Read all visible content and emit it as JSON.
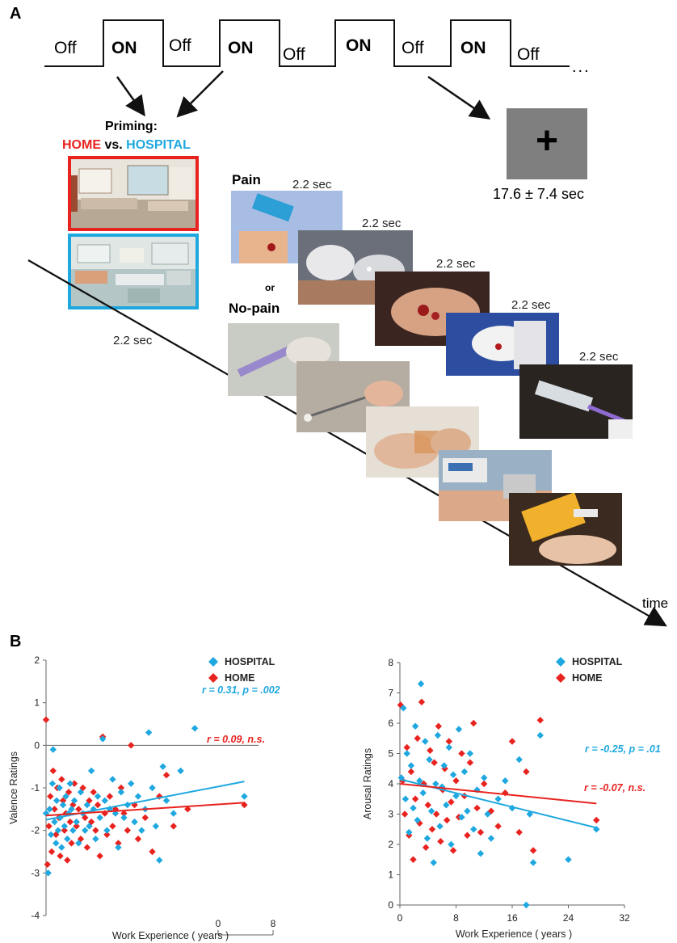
{
  "panel_a": {
    "letter": "A",
    "block_labels": [
      "Off",
      "ON",
      "Off",
      "ON",
      "Off",
      "ON",
      "Off",
      "ON",
      "Off"
    ],
    "ellipsis": "...",
    "priming_title": "Priming:",
    "home_label": "HOME",
    "vs_label": "vs.",
    "hospital_label": "HOSPITAL",
    "fixation_symbol": "+",
    "fixation_duration": "17.6 ± 7.4 sec",
    "pain_label": "Pain",
    "or_label": "or",
    "nopain_label": "No-pain",
    "stim_duration": "2.2 sec",
    "time_label": "time",
    "colors": {
      "home": "#e8231f",
      "hospital": "#1fa8e0",
      "fixation_bg": "#7f7f7f"
    },
    "photo_icons": [
      "living-room-photo",
      "hospital-ward-photo",
      "pain-photo",
      "no-pain-photo"
    ]
  },
  "panel_b": {
    "letter": "B",
    "legend_hospital": "HOSPITAL",
    "legend_home": "HOME",
    "xaxis_title": "Work Experience ( years )"
  },
  "chart_data": [
    {
      "type": "scatter",
      "ylabel": "Valence Ratings",
      "xlabel": "Work Experience ( years )",
      "ylim": [
        -4,
        2
      ],
      "y_ticks": [
        "2",
        "1",
        "0",
        "-1",
        "-2",
        "-3",
        "-4"
      ],
      "x_ticks": [
        "0",
        "8"
      ],
      "grid": false,
      "legend": "top-right",
      "series": [
        {
          "name": "HOSPITAL",
          "color": "#1fa8e0",
          "points": [
            [
              0,
              -1.6
            ],
            [
              0.3,
              -3.0
            ],
            [
              0.5,
              -1.5
            ],
            [
              0.7,
              -2.1
            ],
            [
              0.9,
              -0.9
            ],
            [
              1.0,
              -0.1
            ],
            [
              1.2,
              -1.8
            ],
            [
              1.4,
              -2.3
            ],
            [
              1.5,
              -1.3
            ],
            [
              1.7,
              -2.0
            ],
            [
              1.9,
              -1.0
            ],
            [
              2.0,
              -1.7
            ],
            [
              2.2,
              -2.4
            ],
            [
              2.4,
              -1.4
            ],
            [
              2.6,
              -1.9
            ],
            [
              2.8,
              -1.2
            ],
            [
              3.0,
              -2.2
            ],
            [
              3.2,
              -1.6
            ],
            [
              3.4,
              -0.9
            ],
            [
              3.6,
              -1.5
            ],
            [
              3.8,
              -2.0
            ],
            [
              4.0,
              -1.3
            ],
            [
              4.3,
              -1.8
            ],
            [
              4.6,
              -2.3
            ],
            [
              4.9,
              -1.1
            ],
            [
              5.2,
              -1.6
            ],
            [
              5.5,
              -2.0
            ],
            [
              5.8,
              -1.4
            ],
            [
              6.1,
              -1.9
            ],
            [
              6.4,
              -0.6
            ],
            [
              6.7,
              -1.5
            ],
            [
              7.0,
              -2.2
            ],
            [
              7.3,
              -1.2
            ],
            [
              7.6,
              -1.7
            ],
            [
              8.0,
              0.15
            ],
            [
              8.3,
              -1.3
            ],
            [
              8.6,
              -2.0
            ],
            [
              9.0,
              -1.5
            ],
            [
              9.4,
              -0.8
            ],
            [
              9.8,
              -1.6
            ],
            [
              10.2,
              -2.4
            ],
            [
              10.6,
              -1.1
            ],
            [
              11.0,
              -1.7
            ],
            [
              11.5,
              -1.4
            ],
            [
              12.0,
              -0.9
            ],
            [
              12.5,
              -1.8
            ],
            [
              13.0,
              -1.2
            ],
            [
              13.5,
              -2.0
            ],
            [
              14.0,
              -1.5
            ],
            [
              14.5,
              0.3
            ],
            [
              15.0,
              -1.0
            ],
            [
              15.5,
              -1.9
            ],
            [
              16.0,
              -2.7
            ],
            [
              16.5,
              -0.5
            ],
            [
              17.0,
              -1.3
            ],
            [
              18.0,
              -1.6
            ],
            [
              19.0,
              -0.6
            ],
            [
              21.0,
              0.4
            ],
            [
              28.0,
              -1.2
            ]
          ]
        },
        {
          "name": "HOME",
          "color": "#e8231f",
          "points": [
            [
              0,
              0.6
            ],
            [
              0.2,
              -2.8
            ],
            [
              0.4,
              -1.9
            ],
            [
              0.6,
              -1.2
            ],
            [
              0.8,
              -2.5
            ],
            [
              1.0,
              -0.6
            ],
            [
              1.2,
              -1.5
            ],
            [
              1.4,
              -2.1
            ],
            [
              1.6,
              -1.0
            ],
            [
              1.8,
              -1.7
            ],
            [
              2.0,
              -2.6
            ],
            [
              2.2,
              -0.8
            ],
            [
              2.4,
              -1.3
            ],
            [
              2.6,
              -2.0
            ],
            [
              2.8,
              -1.6
            ],
            [
              3.0,
              -2.7
            ],
            [
              3.2,
              -1.1
            ],
            [
              3.4,
              -1.8
            ],
            [
              3.6,
              -2.3
            ],
            [
              3.8,
              -1.4
            ],
            [
              4.0,
              -0.9
            ],
            [
              4.3,
              -1.9
            ],
            [
              4.6,
              -1.5
            ],
            [
              4.9,
              -2.2
            ],
            [
              5.2,
              -1.0
            ],
            [
              5.5,
              -1.7
            ],
            [
              5.8,
              -2.4
            ],
            [
              6.1,
              -1.3
            ],
            [
              6.4,
              -1.8
            ],
            [
              6.7,
              -1.1
            ],
            [
              7.0,
              -2.0
            ],
            [
              7.3,
              -1.4
            ],
            [
              7.6,
              -2.6
            ],
            [
              8.0,
              0.2
            ],
            [
              8.3,
              -1.6
            ],
            [
              8.6,
              -2.1
            ],
            [
              9.0,
              -1.2
            ],
            [
              9.4,
              -1.9
            ],
            [
              9.8,
              -1.5
            ],
            [
              10.2,
              -2.3
            ],
            [
              10.6,
              -1.0
            ],
            [
              11.0,
              -1.6
            ],
            [
              11.5,
              -2.0
            ],
            [
              12.0,
              0.0
            ],
            [
              12.5,
              -1.4
            ],
            [
              13.0,
              -2.2
            ],
            [
              14.0,
              -1.7
            ],
            [
              15.0,
              -2.5
            ],
            [
              16.0,
              -1.2
            ],
            [
              17.0,
              -0.7
            ],
            [
              18.0,
              -1.9
            ],
            [
              20.0,
              -1.5
            ],
            [
              28.0,
              -1.4
            ]
          ]
        }
      ],
      "fit_lines": [
        {
          "series": "HOSPITAL",
          "x": [
            0,
            28
          ],
          "y": [
            -1.75,
            -0.85
          ],
          "label": "r = 0.31, p = .002"
        },
        {
          "series": "HOME",
          "x": [
            0,
            28
          ],
          "y": [
            -1.65,
            -1.35
          ],
          "label": "r = 0.09, n.s."
        }
      ]
    },
    {
      "type": "scatter",
      "ylabel": "Arousal Ratings",
      "xlabel": "Work Experience ( years )",
      "ylim": [
        0,
        8
      ],
      "xlim": [
        0,
        32
      ],
      "y_ticks": [
        "8",
        "7",
        "6",
        "5",
        "4",
        "3",
        "2",
        "1",
        "0"
      ],
      "x_ticks": [
        "0",
        "8",
        "16",
        "24",
        "32"
      ],
      "grid": false,
      "legend": "top-right",
      "series": [
        {
          "name": "HOSPITAL",
          "color": "#1fa8e0",
          "points": [
            [
              0.2,
              4.2
            ],
            [
              0.5,
              6.5
            ],
            [
              0.8,
              3.5
            ],
            [
              1.0,
              5.0
            ],
            [
              1.3,
              2.4
            ],
            [
              1.6,
              4.6
            ],
            [
              1.9,
              3.2
            ],
            [
              2.2,
              5.9
            ],
            [
              2.5,
              2.8
            ],
            [
              2.8,
              4.1
            ],
            [
              3.0,
              7.3
            ],
            [
              3.3,
              3.7
            ],
            [
              3.6,
              5.4
            ],
            [
              3.9,
              2.2
            ],
            [
              4.2,
              4.8
            ],
            [
              4.5,
              3.1
            ],
            [
              4.8,
              1.4
            ],
            [
              5.1,
              4.0
            ],
            [
              5.4,
              5.6
            ],
            [
              5.7,
              2.6
            ],
            [
              6.0,
              3.9
            ],
            [
              6.3,
              4.6
            ],
            [
              6.6,
              3.3
            ],
            [
              7.0,
              5.2
            ],
            [
              7.3,
              2.0
            ],
            [
              7.6,
              4.3
            ],
            [
              8.0,
              3.6
            ],
            [
              8.4,
              5.8
            ],
            [
              8.8,
              2.9
            ],
            [
              9.2,
              4.4
            ],
            [
              9.6,
              3.1
            ],
            [
              10.0,
              5.0
            ],
            [
              10.5,
              2.5
            ],
            [
              11.0,
              3.8
            ],
            [
              11.5,
              1.7
            ],
            [
              12.0,
              4.2
            ],
            [
              12.5,
              3.0
            ],
            [
              13.0,
              2.2
            ],
            [
              14.0,
              3.5
            ],
            [
              15.0,
              4.1
            ],
            [
              16.0,
              3.2
            ],
            [
              17.0,
              4.8
            ],
            [
              18.0,
              0.0
            ],
            [
              18.5,
              3.0
            ],
            [
              19.0,
              1.4
            ],
            [
              20.0,
              5.6
            ],
            [
              24.0,
              1.5
            ],
            [
              28.0,
              2.5
            ]
          ]
        },
        {
          "name": "HOME",
          "color": "#e8231f",
          "points": [
            [
              0.1,
              6.6
            ],
            [
              0.4,
              4.1
            ],
            [
              0.7,
              3.0
            ],
            [
              1.0,
              5.2
            ],
            [
              1.3,
              2.3
            ],
            [
              1.6,
              4.4
            ],
            [
              1.9,
              1.5
            ],
            [
              2.2,
              3.5
            ],
            [
              2.5,
              5.5
            ],
            [
              2.8,
              2.7
            ],
            [
              3.1,
              6.7
            ],
            [
              3.4,
              4.0
            ],
            [
              3.7,
              1.9
            ],
            [
              4.0,
              3.3
            ],
            [
              4.3,
              5.1
            ],
            [
              4.6,
              2.5
            ],
            [
              4.9,
              4.7
            ],
            [
              5.2,
              3.0
            ],
            [
              5.5,
              5.9
            ],
            [
              5.8,
              2.1
            ],
            [
              6.1,
              3.8
            ],
            [
              6.4,
              4.5
            ],
            [
              6.7,
              2.8
            ],
            [
              7.0,
              5.4
            ],
            [
              7.3,
              3.4
            ],
            [
              7.6,
              1.8
            ],
            [
              8.0,
              4.1
            ],
            [
              8.4,
              2.9
            ],
            [
              8.8,
              5.0
            ],
            [
              9.2,
              3.6
            ],
            [
              9.6,
              2.3
            ],
            [
              10.0,
              4.7
            ],
            [
              10.5,
              6.0
            ],
            [
              11.0,
              3.2
            ],
            [
              11.5,
              2.4
            ],
            [
              12.0,
              4.0
            ],
            [
              13.0,
              3.1
            ],
            [
              14.0,
              2.6
            ],
            [
              15.0,
              3.7
            ],
            [
              16.0,
              5.4
            ],
            [
              17.0,
              2.4
            ],
            [
              18.0,
              4.4
            ],
            [
              19.0,
              1.8
            ],
            [
              20.0,
              6.1
            ],
            [
              28.0,
              2.8
            ]
          ]
        }
      ],
      "fit_lines": [
        {
          "series": "HOSPITAL",
          "x": [
            0,
            28
          ],
          "y": [
            4.15,
            2.55
          ],
          "label": "r = -0.25, p = .01"
        },
        {
          "series": "HOME",
          "x": [
            0,
            28
          ],
          "y": [
            4.0,
            3.35
          ],
          "label": "r = -0.07, n.s."
        }
      ]
    }
  ]
}
